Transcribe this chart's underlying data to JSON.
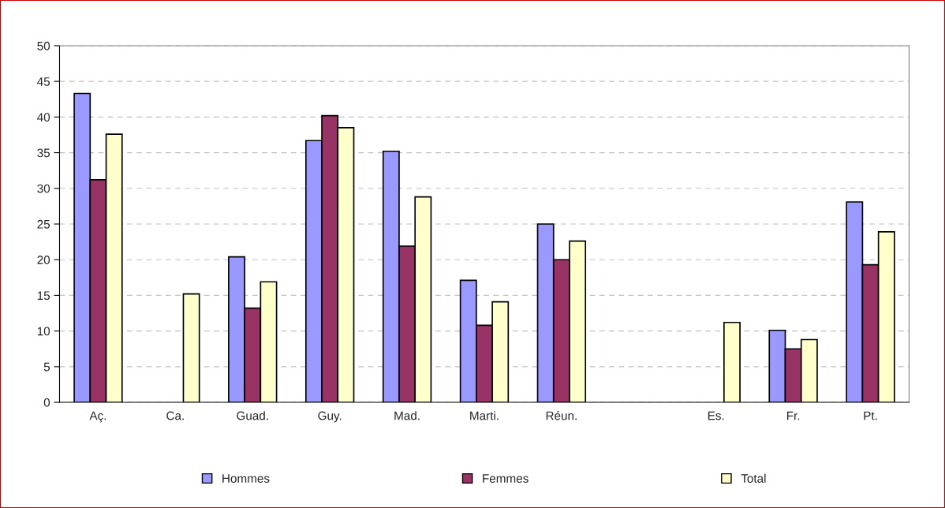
{
  "chart_data": {
    "type": "bar",
    "categories": [
      "Aç.",
      "Ca.",
      "Guad.",
      "Guy.",
      "Mad.",
      "Marti.",
      "Réun.",
      null,
      "Es.",
      "Fr.",
      "Pt."
    ],
    "series": [
      {
        "name": "Hommes",
        "color": "#9999ff",
        "values": [
          43.3,
          null,
          20.4,
          36.7,
          35.2,
          17.1,
          25.0,
          null,
          null,
          10.1,
          28.1
        ]
      },
      {
        "name": "Femmes",
        "color": "#993366",
        "values": [
          31.2,
          null,
          13.2,
          40.2,
          21.9,
          10.8,
          20.0,
          null,
          null,
          7.5,
          19.3
        ]
      },
      {
        "name": "Total",
        "color": "#ffffcc",
        "values": [
          37.6,
          15.2,
          16.9,
          38.5,
          28.8,
          14.1,
          22.6,
          null,
          11.2,
          8.8,
          23.9
        ]
      }
    ],
    "ylim": [
      0,
      50
    ],
    "yticks": [
      0,
      5,
      10,
      15,
      20,
      25,
      30,
      35,
      40,
      45,
      50
    ],
    "grid": "y",
    "legend": "bottom"
  }
}
